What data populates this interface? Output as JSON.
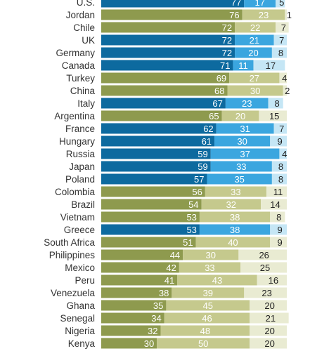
{
  "chart_data": {
    "type": "bar",
    "orientation": "horizontal",
    "stacked": true,
    "categories": [
      "U.S.",
      "Jordan",
      "Chile",
      "UK",
      "Germany",
      "Canada",
      "Turkey",
      "China",
      "Italy",
      "Argentina",
      "France",
      "Hungary",
      "Russia",
      "Japan",
      "Poland",
      "Colombia",
      "Brazil",
      "Vietnam",
      "Greece",
      "South Africa",
      "Philippines",
      "Mexico",
      "Peru",
      "Venezuela",
      "Ghana",
      "Senegal",
      "Nigeria",
      "Kenya"
    ],
    "advanced": [
      true,
      false,
      false,
      true,
      true,
      true,
      false,
      false,
      true,
      false,
      true,
      true,
      true,
      true,
      true,
      false,
      false,
      false,
      true,
      false,
      false,
      false,
      false,
      false,
      false,
      false,
      false,
      false
    ],
    "series": [
      {
        "values": [
          77,
          76,
          72,
          72,
          72,
          71,
          69,
          68,
          67,
          65,
          62,
          61,
          59,
          59,
          57,
          56,
          54,
          53,
          53,
          51,
          44,
          42,
          41,
          38,
          35,
          34,
          32,
          30
        ]
      },
      {
        "values": [
          17,
          23,
          22,
          21,
          20,
          11,
          27,
          30,
          23,
          20,
          31,
          30,
          37,
          33,
          35,
          33,
          32,
          38,
          38,
          40,
          30,
          33,
          43,
          39,
          45,
          46,
          48,
          50
        ]
      },
      {
        "values": [
          5,
          1,
          7,
          7,
          8,
          17,
          4,
          2,
          8,
          15,
          7,
          9,
          4,
          8,
          8,
          11,
          14,
          8,
          9,
          9,
          26,
          25,
          16,
          23,
          20,
          21,
          20,
          20
        ]
      }
    ],
    "xlim": [
      0,
      100
    ],
    "colors": {
      "advanced": [
        "#0d6a9f",
        "#3ba6df",
        "#c5e6f5"
      ],
      "emerging": [
        "#8e9a4e",
        "#c5c98d",
        "#e9ebd2"
      ]
    },
    "grid": false,
    "legend": "none"
  }
}
